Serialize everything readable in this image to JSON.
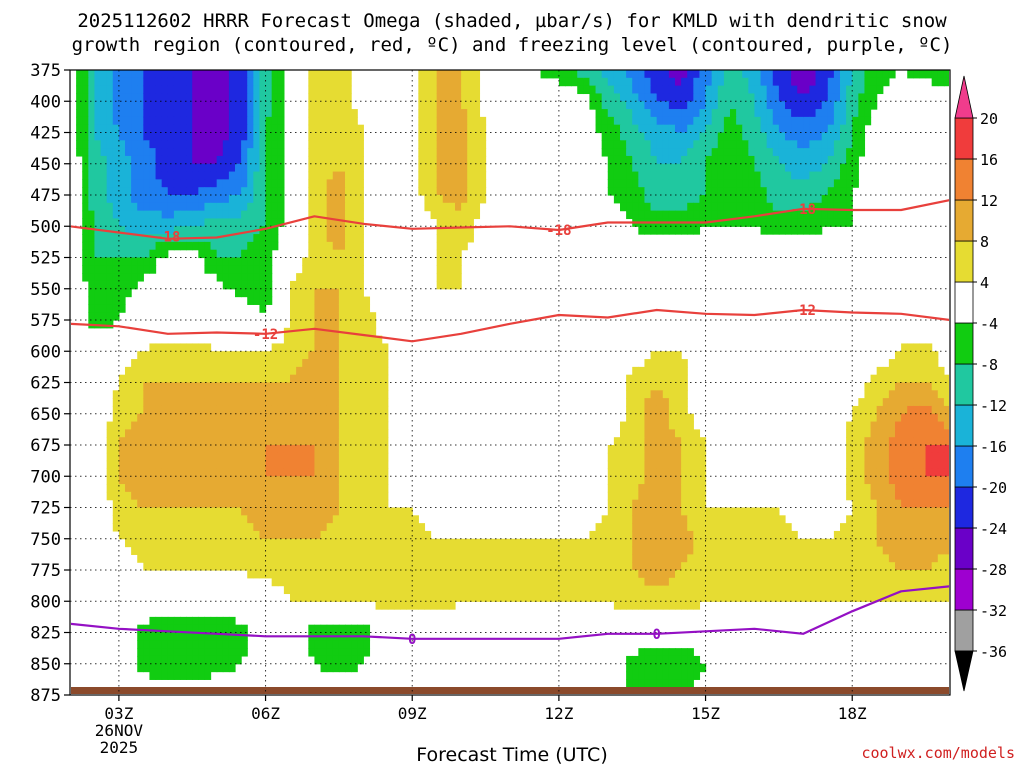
{
  "chart_data": {
    "type": "heatmap",
    "title_line1": "2025112602 HRRR Forecast Omega (shaded, µbar/s) for KMLD with dendritic snow",
    "title_line2": "growth region (contoured, red, ºC) and freezing level (contoured, purple, ºC)",
    "xlabel": "Forecast Time (UTC)",
    "credit": "coolwx.com/models",
    "x_ticks": [
      {
        "hour": 3,
        "label": "03Z"
      },
      {
        "hour": 6,
        "label": "06Z"
      },
      {
        "hour": 9,
        "label": "09Z"
      },
      {
        "hour": 12,
        "label": "12Z"
      },
      {
        "hour": 15,
        "label": "15Z"
      },
      {
        "hour": 18,
        "label": "18Z"
      }
    ],
    "x_date_lines": [
      "26NOV",
      "2025"
    ],
    "xlim": [
      2,
      20
    ],
    "ylim": [
      375,
      875
    ],
    "y_ticks": [
      375,
      400,
      425,
      450,
      475,
      500,
      525,
      550,
      575,
      600,
      625,
      650,
      675,
      700,
      725,
      750,
      775,
      800,
      825,
      850,
      875
    ],
    "grid": true,
    "colorbar": {
      "levels": [
        -36,
        -32,
        -28,
        -24,
        -20,
        -16,
        -12,
        -8,
        -4,
        4,
        8,
        12,
        16,
        20
      ],
      "labels": [
        "20",
        "16",
        "12",
        "8",
        "4",
        "-4",
        "-8",
        "-12",
        "-16",
        "-20",
        "-24",
        "-28",
        "-32",
        "-36"
      ],
      "colors": [
        "#000000",
        "#a0a0a0",
        "#9e00d0",
        "#6a00c8",
        "#1e28e0",
        "#1e7ff0",
        "#1ab3d8",
        "#20c8a0",
        "#11cc11",
        "#ffffff",
        "#e6dc32",
        "#e6aa32",
        "#f08232",
        "#f03c3c",
        "#f03c8c"
      ]
    },
    "omega_field": {
      "hours": [
        2,
        2.5,
        3,
        3.5,
        4,
        4.5,
        5,
        5.5,
        6,
        6.5,
        7,
        7.5,
        8,
        8.5,
        9,
        9.5,
        10,
        10.5,
        11,
        11.5,
        12,
        12.5,
        13,
        13.5,
        14,
        14.5,
        15,
        15.5,
        16,
        16.5,
        17,
        17.5,
        18,
        18.5,
        19,
        19.5,
        20
      ],
      "pressures": [
        375,
        400,
        425,
        450,
        475,
        500,
        525,
        550,
        575,
        600,
        625,
        650,
        675,
        700,
        725,
        750,
        775,
        800,
        825,
        850,
        875
      ],
      "values": [
        [
          0,
          -12,
          -18,
          -20,
          -22,
          -24,
          -26,
          -22,
          -10,
          -2,
          6,
          6,
          2,
          0,
          2,
          8,
          8,
          2,
          0,
          -4,
          -6,
          -10,
          -14,
          -18,
          -22,
          -26,
          -18,
          -10,
          -14,
          -22,
          -28,
          -22,
          -12,
          -6,
          -4,
          -6,
          -8
        ],
        [
          0,
          -12,
          -18,
          -20,
          -22,
          -24,
          -26,
          -22,
          -10,
          -2,
          6,
          6,
          2,
          0,
          2,
          8,
          8,
          2,
          0,
          0,
          0,
          -2,
          -10,
          -14,
          -20,
          -22,
          -16,
          -8,
          -12,
          -20,
          -24,
          -20,
          -10,
          -4,
          0,
          0,
          0
        ],
        [
          0,
          -12,
          -16,
          -20,
          -22,
          -24,
          -26,
          -22,
          -8,
          -2,
          6,
          8,
          4,
          0,
          2,
          8,
          10,
          4,
          0,
          0,
          0,
          0,
          -6,
          -10,
          -14,
          -16,
          -12,
          -6,
          -10,
          -16,
          -18,
          -16,
          -8,
          0,
          0,
          0,
          0
        ],
        [
          0,
          -10,
          -14,
          -18,
          -22,
          -24,
          -24,
          -20,
          -8,
          -2,
          6,
          8,
          4,
          0,
          2,
          8,
          10,
          4,
          0,
          0,
          0,
          0,
          -4,
          -8,
          -12,
          -12,
          -8,
          -4,
          -8,
          -12,
          -14,
          -12,
          -6,
          0,
          0,
          0,
          0
        ],
        [
          0,
          -10,
          -14,
          -18,
          -20,
          -20,
          -18,
          -16,
          -8,
          -2,
          6,
          10,
          4,
          0,
          2,
          8,
          10,
          4,
          0,
          0,
          0,
          0,
          -4,
          -6,
          -10,
          -10,
          -8,
          -4,
          -6,
          -10,
          -10,
          -8,
          -4,
          0,
          0,
          0,
          0
        ],
        [
          0,
          -8,
          -12,
          -14,
          -14,
          -12,
          -10,
          -10,
          -8,
          -2,
          6,
          10,
          4,
          0,
          0,
          4,
          6,
          2,
          0,
          0,
          0,
          0,
          0,
          -4,
          -6,
          -6,
          -4,
          -4,
          -4,
          -6,
          -6,
          -4,
          -4,
          0,
          0,
          0,
          0
        ],
        [
          0,
          -8,
          -8,
          -8,
          -2,
          -2,
          -8,
          -8,
          -6,
          0,
          6,
          8,
          4,
          0,
          0,
          4,
          4,
          2,
          0,
          0,
          0,
          0,
          0,
          0,
          0,
          0,
          0,
          0,
          0,
          0,
          0,
          0,
          0,
          0,
          0,
          0,
          0
        ],
        [
          0,
          -6,
          -6,
          -2,
          0,
          0,
          -2,
          -6,
          -6,
          4,
          8,
          8,
          4,
          0,
          0,
          4,
          4,
          0,
          0,
          0,
          0,
          0,
          0,
          0,
          0,
          0,
          0,
          0,
          0,
          0,
          0,
          0,
          0,
          0,
          0,
          0,
          0
        ],
        [
          0,
          -6,
          -4,
          0,
          0,
          0,
          0,
          0,
          -4,
          4,
          8,
          8,
          6,
          2,
          0,
          0,
          0,
          0,
          0,
          0,
          0,
          0,
          0,
          0,
          0,
          0,
          0,
          0,
          0,
          0,
          0,
          0,
          0,
          0,
          4,
          0,
          0
        ],
        [
          0,
          0,
          0,
          4,
          6,
          6,
          4,
          4,
          4,
          6,
          8,
          8,
          6,
          4,
          0,
          0,
          0,
          0,
          0,
          0,
          0,
          0,
          0,
          0,
          4,
          4,
          0,
          0,
          0,
          0,
          0,
          0,
          0,
          0,
          4,
          6,
          0
        ],
        [
          0,
          0,
          4,
          8,
          8,
          8,
          8,
          8,
          8,
          8,
          10,
          8,
          6,
          4,
          0,
          0,
          0,
          0,
          0,
          0,
          0,
          0,
          0,
          6,
          8,
          6,
          0,
          0,
          0,
          0,
          0,
          0,
          0,
          6,
          8,
          8,
          4
        ],
        [
          0,
          0,
          6,
          8,
          10,
          10,
          10,
          10,
          10,
          10,
          12,
          8,
          6,
          4,
          0,
          0,
          0,
          0,
          0,
          0,
          0,
          0,
          0,
          6,
          10,
          6,
          0,
          0,
          0,
          0,
          0,
          0,
          4,
          8,
          12,
          14,
          8
        ],
        [
          0,
          0,
          8,
          10,
          12,
          12,
          10,
          10,
          12,
          12,
          12,
          8,
          6,
          4,
          0,
          0,
          0,
          0,
          0,
          0,
          0,
          0,
          4,
          6,
          10,
          8,
          4,
          0,
          0,
          0,
          0,
          0,
          6,
          10,
          14,
          16,
          16
        ],
        [
          0,
          0,
          8,
          10,
          10,
          10,
          10,
          10,
          12,
          12,
          12,
          8,
          6,
          4,
          0,
          0,
          0,
          0,
          0,
          0,
          0,
          0,
          4,
          6,
          10,
          8,
          4,
          0,
          0,
          0,
          0,
          0,
          6,
          10,
          14,
          16,
          16
        ],
        [
          0,
          0,
          6,
          8,
          8,
          8,
          8,
          8,
          10,
          12,
          10,
          8,
          6,
          4,
          4,
          0,
          0,
          0,
          0,
          0,
          0,
          0,
          4,
          8,
          12,
          8,
          4,
          4,
          4,
          4,
          0,
          0,
          4,
          8,
          12,
          12,
          12
        ],
        [
          0,
          0,
          4,
          6,
          6,
          6,
          6,
          6,
          8,
          8,
          8,
          6,
          6,
          6,
          6,
          4,
          4,
          4,
          4,
          4,
          4,
          4,
          6,
          8,
          12,
          10,
          6,
          6,
          6,
          6,
          4,
          4,
          6,
          8,
          10,
          10,
          10
        ],
        [
          0,
          0,
          0,
          4,
          4,
          4,
          4,
          4,
          6,
          6,
          6,
          6,
          6,
          8,
          8,
          6,
          6,
          6,
          6,
          6,
          6,
          6,
          6,
          8,
          10,
          8,
          6,
          6,
          8,
          6,
          4,
          4,
          6,
          6,
          8,
          8,
          6
        ],
        [
          0,
          0,
          0,
          0,
          0,
          0,
          0,
          0,
          0,
          4,
          4,
          4,
          4,
          6,
          6,
          6,
          4,
          4,
          4,
          4,
          4,
          4,
          4,
          6,
          6,
          6,
          4,
          4,
          4,
          4,
          4,
          4,
          4,
          4,
          4,
          4,
          4
        ],
        [
          0,
          0,
          0,
          -6,
          -8,
          -8,
          -8,
          -6,
          0,
          0,
          -6,
          -8,
          -6,
          0,
          0,
          0,
          0,
          0,
          0,
          0,
          0,
          0,
          0,
          0,
          0,
          0,
          0,
          0,
          0,
          0,
          0,
          0,
          0,
          0,
          0,
          0,
          0
        ],
        [
          0,
          0,
          0,
          -6,
          -8,
          -8,
          -6,
          -4,
          0,
          0,
          -4,
          -6,
          -4,
          0,
          0,
          0,
          0,
          0,
          0,
          0,
          0,
          0,
          0,
          -6,
          -8,
          -8,
          -4,
          0,
          0,
          0,
          0,
          0,
          0,
          0,
          0,
          0,
          0
        ],
        [
          0,
          0,
          0,
          0,
          0,
          0,
          0,
          0,
          0,
          0,
          0,
          0,
          0,
          0,
          0,
          0,
          0,
          0,
          0,
          0,
          0,
          0,
          0,
          -4,
          -6,
          -6,
          0,
          0,
          0,
          0,
          0,
          0,
          0,
          0,
          0,
          0,
          0
        ]
      ]
    },
    "red_contours": [
      {
        "label": "-18",
        "points": [
          [
            2,
            500
          ],
          [
            3,
            505
          ],
          [
            4,
            510
          ],
          [
            5,
            509
          ],
          [
            6,
            502
          ],
          [
            7,
            492
          ],
          [
            8,
            498
          ],
          [
            9,
            502
          ],
          [
            10,
            501
          ],
          [
            11,
            500
          ],
          [
            12,
            503
          ],
          [
            13,
            497
          ],
          [
            14,
            497
          ],
          [
            15,
            497
          ],
          [
            16,
            492
          ],
          [
            17,
            486
          ],
          [
            18,
            487
          ],
          [
            19,
            487
          ],
          [
            20,
            479
          ]
        ],
        "label_positions": [
          [
            4,
            508
          ],
          [
            12,
            503
          ],
          [
            17,
            486
          ]
        ]
      },
      {
        "label": "-12",
        "points": [
          [
            2,
            578
          ],
          [
            3,
            580
          ],
          [
            4,
            586
          ],
          [
            5,
            585
          ],
          [
            6,
            586
          ],
          [
            7,
            582
          ],
          [
            8,
            587
          ],
          [
            9,
            592
          ],
          [
            10,
            586
          ],
          [
            11,
            578
          ],
          [
            12,
            571
          ],
          [
            13,
            573
          ],
          [
            14,
            567
          ],
          [
            15,
            570
          ],
          [
            16,
            571
          ],
          [
            17,
            567
          ],
          [
            18,
            569
          ],
          [
            19,
            570
          ],
          [
            20,
            575
          ]
        ],
        "label_positions": [
          [
            6,
            586
          ],
          [
            17,
            567
          ]
        ]
      }
    ],
    "purple_contour": {
      "label": "0",
      "points": [
        [
          2,
          818
        ],
        [
          3,
          822
        ],
        [
          4,
          824
        ],
        [
          5,
          826
        ],
        [
          6,
          828
        ],
        [
          7,
          828
        ],
        [
          8,
          828
        ],
        [
          9,
          830
        ],
        [
          10,
          830
        ],
        [
          11,
          830
        ],
        [
          12,
          830
        ],
        [
          13,
          826
        ],
        [
          14,
          826
        ],
        [
          15,
          824
        ],
        [
          16,
          822
        ],
        [
          17,
          826
        ],
        [
          18,
          808
        ],
        [
          19,
          792
        ],
        [
          20,
          788
        ]
      ],
      "label_positions": [
        [
          9,
          830
        ],
        [
          14,
          826
        ]
      ]
    }
  }
}
